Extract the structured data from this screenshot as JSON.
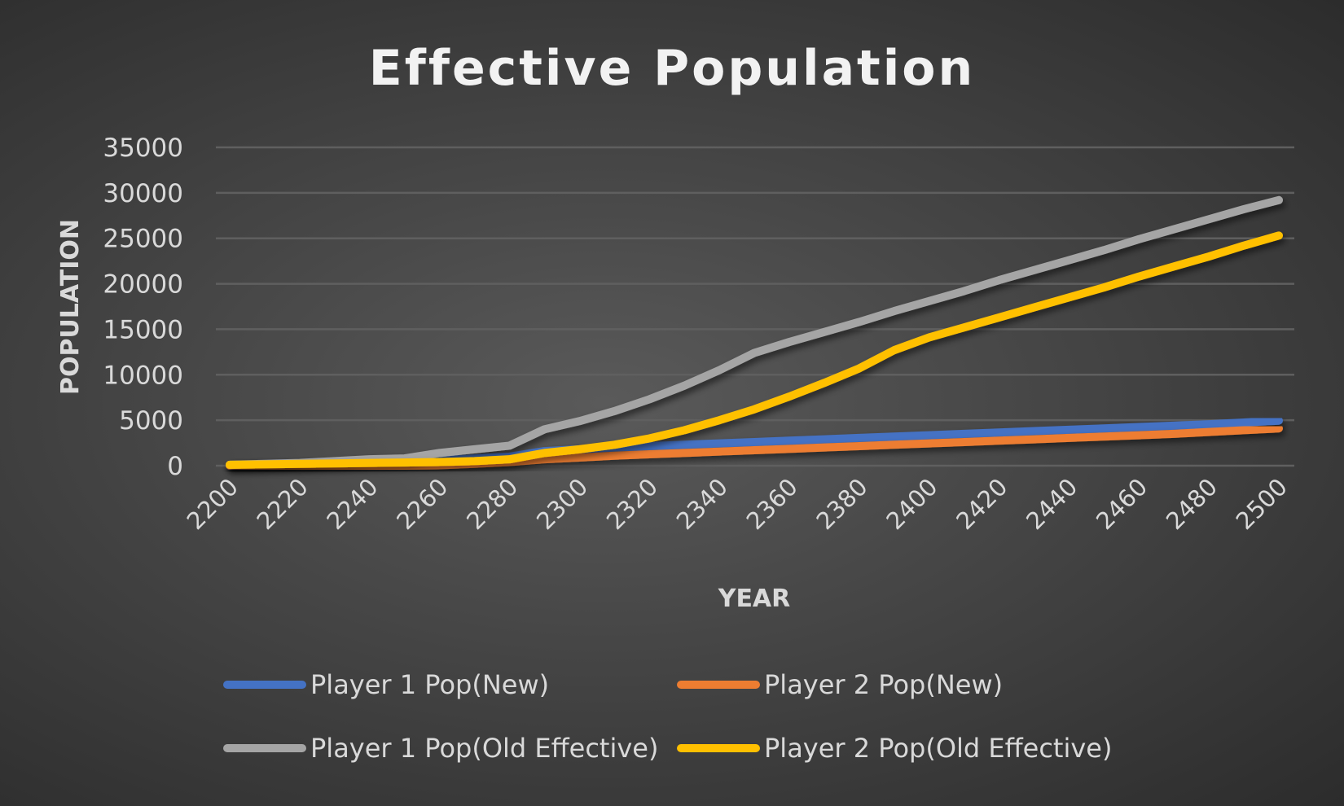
{
  "chart_data": {
    "type": "line",
    "title": "Effective Population",
    "xlabel": "YEAR",
    "ylabel": "POPULATION",
    "ylim": [
      0,
      35000
    ],
    "yticks": [
      0,
      5000,
      10000,
      15000,
      20000,
      25000,
      30000,
      35000
    ],
    "xticks": [
      2200,
      2220,
      2240,
      2260,
      2280,
      2300,
      2320,
      2340,
      2360,
      2380,
      2400,
      2420,
      2440,
      2460,
      2480,
      2500
    ],
    "grid": true,
    "legend_position": "bottom",
    "x": [
      2200,
      2210,
      2220,
      2230,
      2240,
      2250,
      2260,
      2270,
      2280,
      2290,
      2300,
      2310,
      2320,
      2330,
      2340,
      2350,
      2360,
      2370,
      2380,
      2390,
      2400,
      2410,
      2420,
      2430,
      2440,
      2450,
      2460,
      2470,
      2480,
      2490,
      2500
    ],
    "series": [
      {
        "name": "Player 1 Pop(New)",
        "color": "#4472c4",
        "values": [
          50,
          100,
          200,
          300,
          400,
          500,
          600,
          800,
          1000,
          1600,
          1800,
          2000,
          2150,
          2300,
          2450,
          2600,
          2750,
          2900,
          3050,
          3200,
          3350,
          3500,
          3650,
          3800,
          3950,
          4100,
          4250,
          4400,
          4550,
          4750,
          4950
        ]
      },
      {
        "name": "Player 2 Pop(New)",
        "color": "#ed7d31",
        "values": [
          0,
          0,
          0,
          0,
          0,
          0,
          50,
          200,
          400,
          700,
          900,
          1100,
          1250,
          1400,
          1550,
          1700,
          1850,
          2000,
          2150,
          2300,
          2450,
          2600,
          2750,
          2900,
          3050,
          3200,
          3350,
          3500,
          3700,
          3900,
          4100
        ]
      },
      {
        "name": "Player 1 Pop(Old Effective)",
        "color": "#a5a5a5",
        "values": [
          100,
          200,
          300,
          500,
          700,
          800,
          1400,
          1800,
          2200,
          4000,
          4900,
          6000,
          7300,
          8800,
          10500,
          12400,
          13600,
          14700,
          15800,
          17000,
          18100,
          19200,
          20400,
          21500,
          22600,
          23700,
          24900,
          26000,
          27100,
          28200,
          29200
        ]
      },
      {
        "name": "Player 2 Pop(Old Effective)",
        "color": "#ffc000",
        "values": [
          100,
          150,
          200,
          250,
          300,
          350,
          400,
          500,
          700,
          1400,
          1800,
          2300,
          3000,
          3900,
          5000,
          6200,
          7600,
          9100,
          10700,
          12700,
          14100,
          15200,
          16300,
          17400,
          18500,
          19600,
          20800,
          21900,
          23000,
          24200,
          25300
        ]
      }
    ]
  }
}
